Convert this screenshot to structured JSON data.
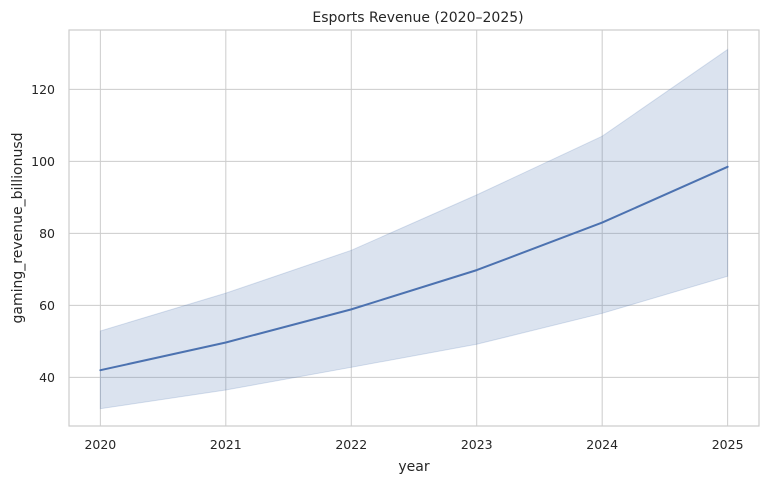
{
  "chart_data": {
    "type": "line",
    "title": "Esports Revenue (2020–2025)",
    "xlabel": "year",
    "ylabel": "gaming_revenue_billionusd",
    "x": [
      2020,
      2021,
      2022,
      2023,
      2024,
      2025
    ],
    "xlim": [
      2019.75,
      2025.25
    ],
    "ylim": [
      26.5,
      136.5
    ],
    "yticks": [
      40,
      60,
      80,
      100,
      120
    ],
    "xtick_labels": [
      "2020",
      "2021",
      "2022",
      "2023",
      "2024",
      "2025"
    ],
    "ytick_labels": [
      "40",
      "60",
      "80",
      "100",
      "120"
    ],
    "grid": true,
    "series": [
      {
        "values": [
          42.0,
          49.7,
          58.9,
          69.8,
          83.0,
          98.5
        ],
        "band_lower": [
          31.3,
          36.5,
          42.8,
          49.2,
          57.8,
          68.1
        ],
        "band_upper": [
          52.9,
          63.4,
          75.3,
          90.7,
          107.0,
          131.1
        ],
        "color": "#4c72b0"
      }
    ]
  }
}
